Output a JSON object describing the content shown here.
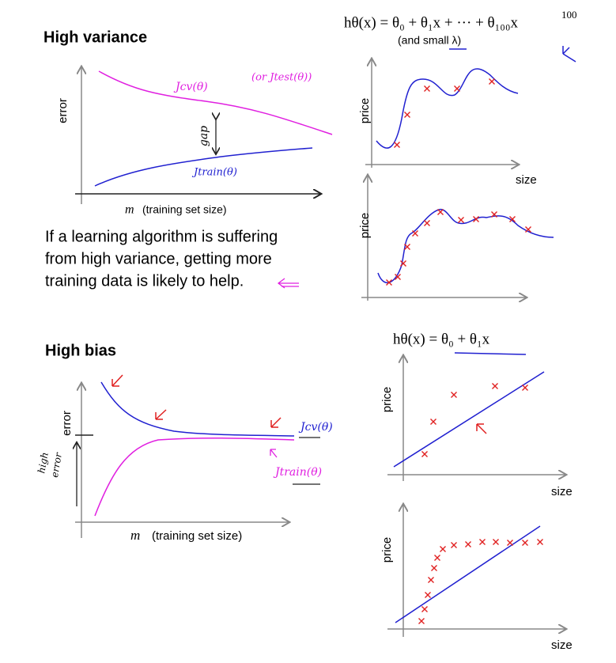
{
  "high_variance": {
    "title": "High variance",
    "error_plot": {
      "y_label": "error",
      "x_label_var": "m",
      "x_label": "(training set size)",
      "cv_label": "Jcv(θ)",
      "test_label": "(or Jtest(θ))",
      "gap_label": "gap",
      "train_label": "Jtrain(θ)"
    },
    "paragraph": [
      "If a learning algorithm is suffering",
      "from high variance, getting more",
      "training data is likely to help."
    ],
    "formula": {
      "main": "hθ(x) = θ₀ + θ₁x + ··· + θ₁₀₀x",
      "exponent": "100",
      "note": "(and small λ)"
    },
    "plots": {
      "y_label": "price",
      "x_label": "size"
    }
  },
  "high_bias": {
    "title": "High bias",
    "error_plot": {
      "y_label": "error",
      "x_label_var": "m",
      "x_label": "(training set size)",
      "cv_label": "Jcv(θ)",
      "train_label": "Jtrain(θ)",
      "side_note": [
        "high",
        "error"
      ]
    },
    "formula": "hθ(x) = θ₀ + θ₁x",
    "plots": {
      "y_label": "price",
      "x_label": "size"
    }
  }
}
